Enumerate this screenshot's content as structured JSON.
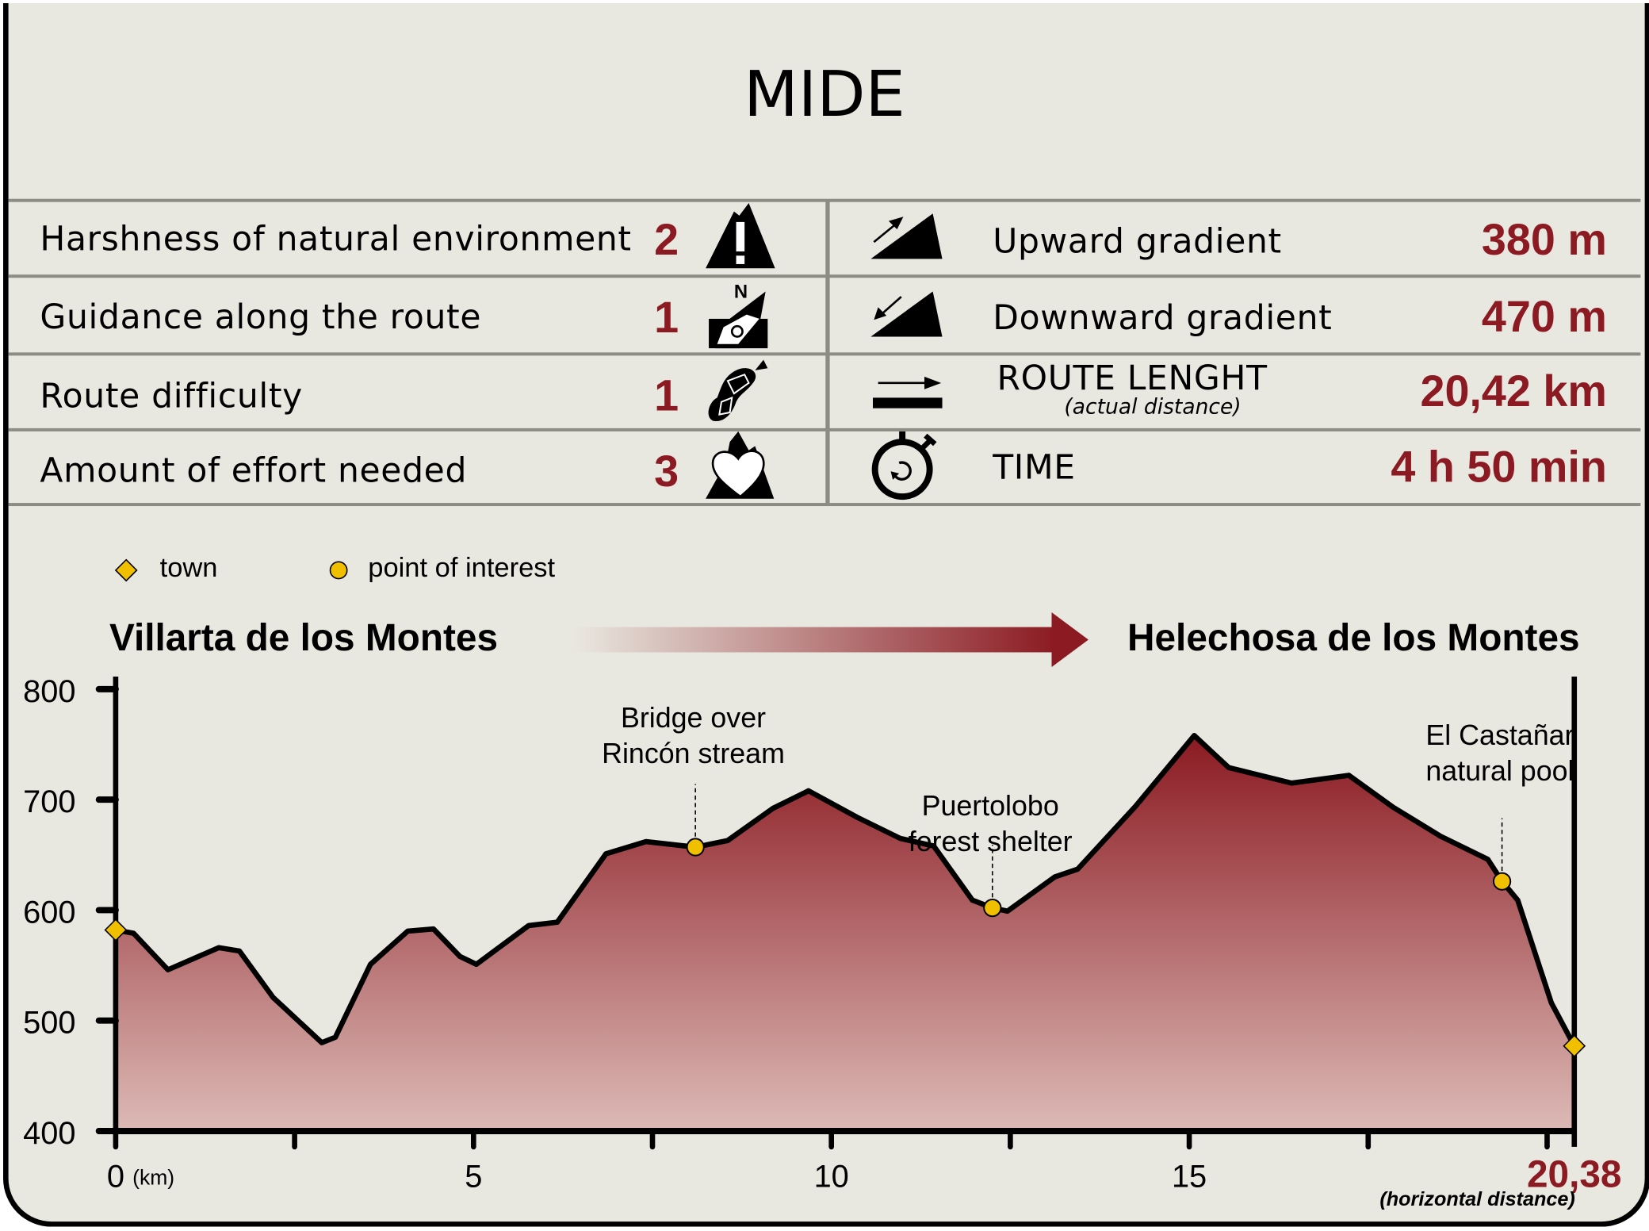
{
  "title": "MIDE",
  "mide": [
    {
      "label": "Harshness of natural environment",
      "value": "2",
      "icon": "warning-mountain-icon"
    },
    {
      "label": "Guidance along the route",
      "value": "1",
      "icon": "compass-icon"
    },
    {
      "label": "Route difficulty",
      "value": "1",
      "icon": "boot-sole-icon"
    },
    {
      "label": "Amount of effort needed",
      "value": "3",
      "icon": "heart-mountain-icon"
    }
  ],
  "stats": [
    {
      "label": "Upward gradient",
      "value": "380 m",
      "icon": "upward-slope-icon"
    },
    {
      "label": "Downward gradient",
      "value": "470 m",
      "icon": "downward-slope-icon"
    },
    {
      "label": "ROUTE LENGHT",
      "sublabel": "(actual distance)",
      "value": "20,42 km",
      "icon": "distance-arrow-icon"
    },
    {
      "label": "TIME",
      "value": "4 h 50 min",
      "icon": "stopwatch-icon"
    }
  ],
  "legend": {
    "town": "town",
    "poi": "point of interest"
  },
  "start": "Villarta de los Montes",
  "end": "Helechosa de los Montes",
  "colors": {
    "accent": "#8b1a22",
    "marker": "#f0c000",
    "background": "#e9e8e0"
  },
  "chart_data": {
    "type": "area",
    "xlabel": "(km)",
    "x_end_label": "20,38",
    "x_end_note": "(horizontal distance)",
    "xlim": [
      0,
      20.38
    ],
    "ylim": [
      400,
      800
    ],
    "yticks": [
      "800",
      "700",
      "600",
      "500",
      "400"
    ],
    "xticks": [
      "0",
      "5",
      "10",
      "15"
    ],
    "grid": false,
    "x": [
      0,
      0.25,
      0.73,
      1.44,
      1.73,
      2.2,
      2.88,
      3.07,
      3.56,
      4.08,
      4.44,
      4.81,
      5.04,
      5.77,
      6.17,
      6.85,
      7.41,
      8.1,
      8.55,
      9.18,
      9.68,
      10.36,
      10.96,
      11.43,
      11.97,
      12.25,
      12.46,
      13.12,
      13.44,
      14.25,
      15.07,
      15.55,
      16.43,
      17.23,
      17.85,
      18.51,
      19.17,
      19.37,
      19.59,
      20.06,
      20.38
    ],
    "y": [
      582,
      579,
      546,
      566,
      563,
      521,
      480,
      485,
      551,
      581,
      583,
      558,
      551,
      586,
      589,
      651,
      662,
      657,
      663,
      692,
      708,
      684,
      665,
      658,
      609,
      602,
      599,
      630,
      637,
      694,
      758,
      729,
      715,
      722,
      693,
      667,
      646,
      626,
      609,
      516,
      477
    ],
    "towns": [
      {
        "x": 0,
        "y": 582
      },
      {
        "x": 20.38,
        "y": 477
      }
    ],
    "points_of_interest": [
      {
        "x": 8.1,
        "y": 657,
        "label": [
          "Bridge over",
          "Rincón stream"
        ]
      },
      {
        "x": 12.25,
        "y": 602,
        "label": [
          "Puertolobo",
          "forest shelter"
        ]
      },
      {
        "x": 19.37,
        "y": 626,
        "label": [
          "El Castañar",
          "natural pool"
        ]
      }
    ]
  }
}
